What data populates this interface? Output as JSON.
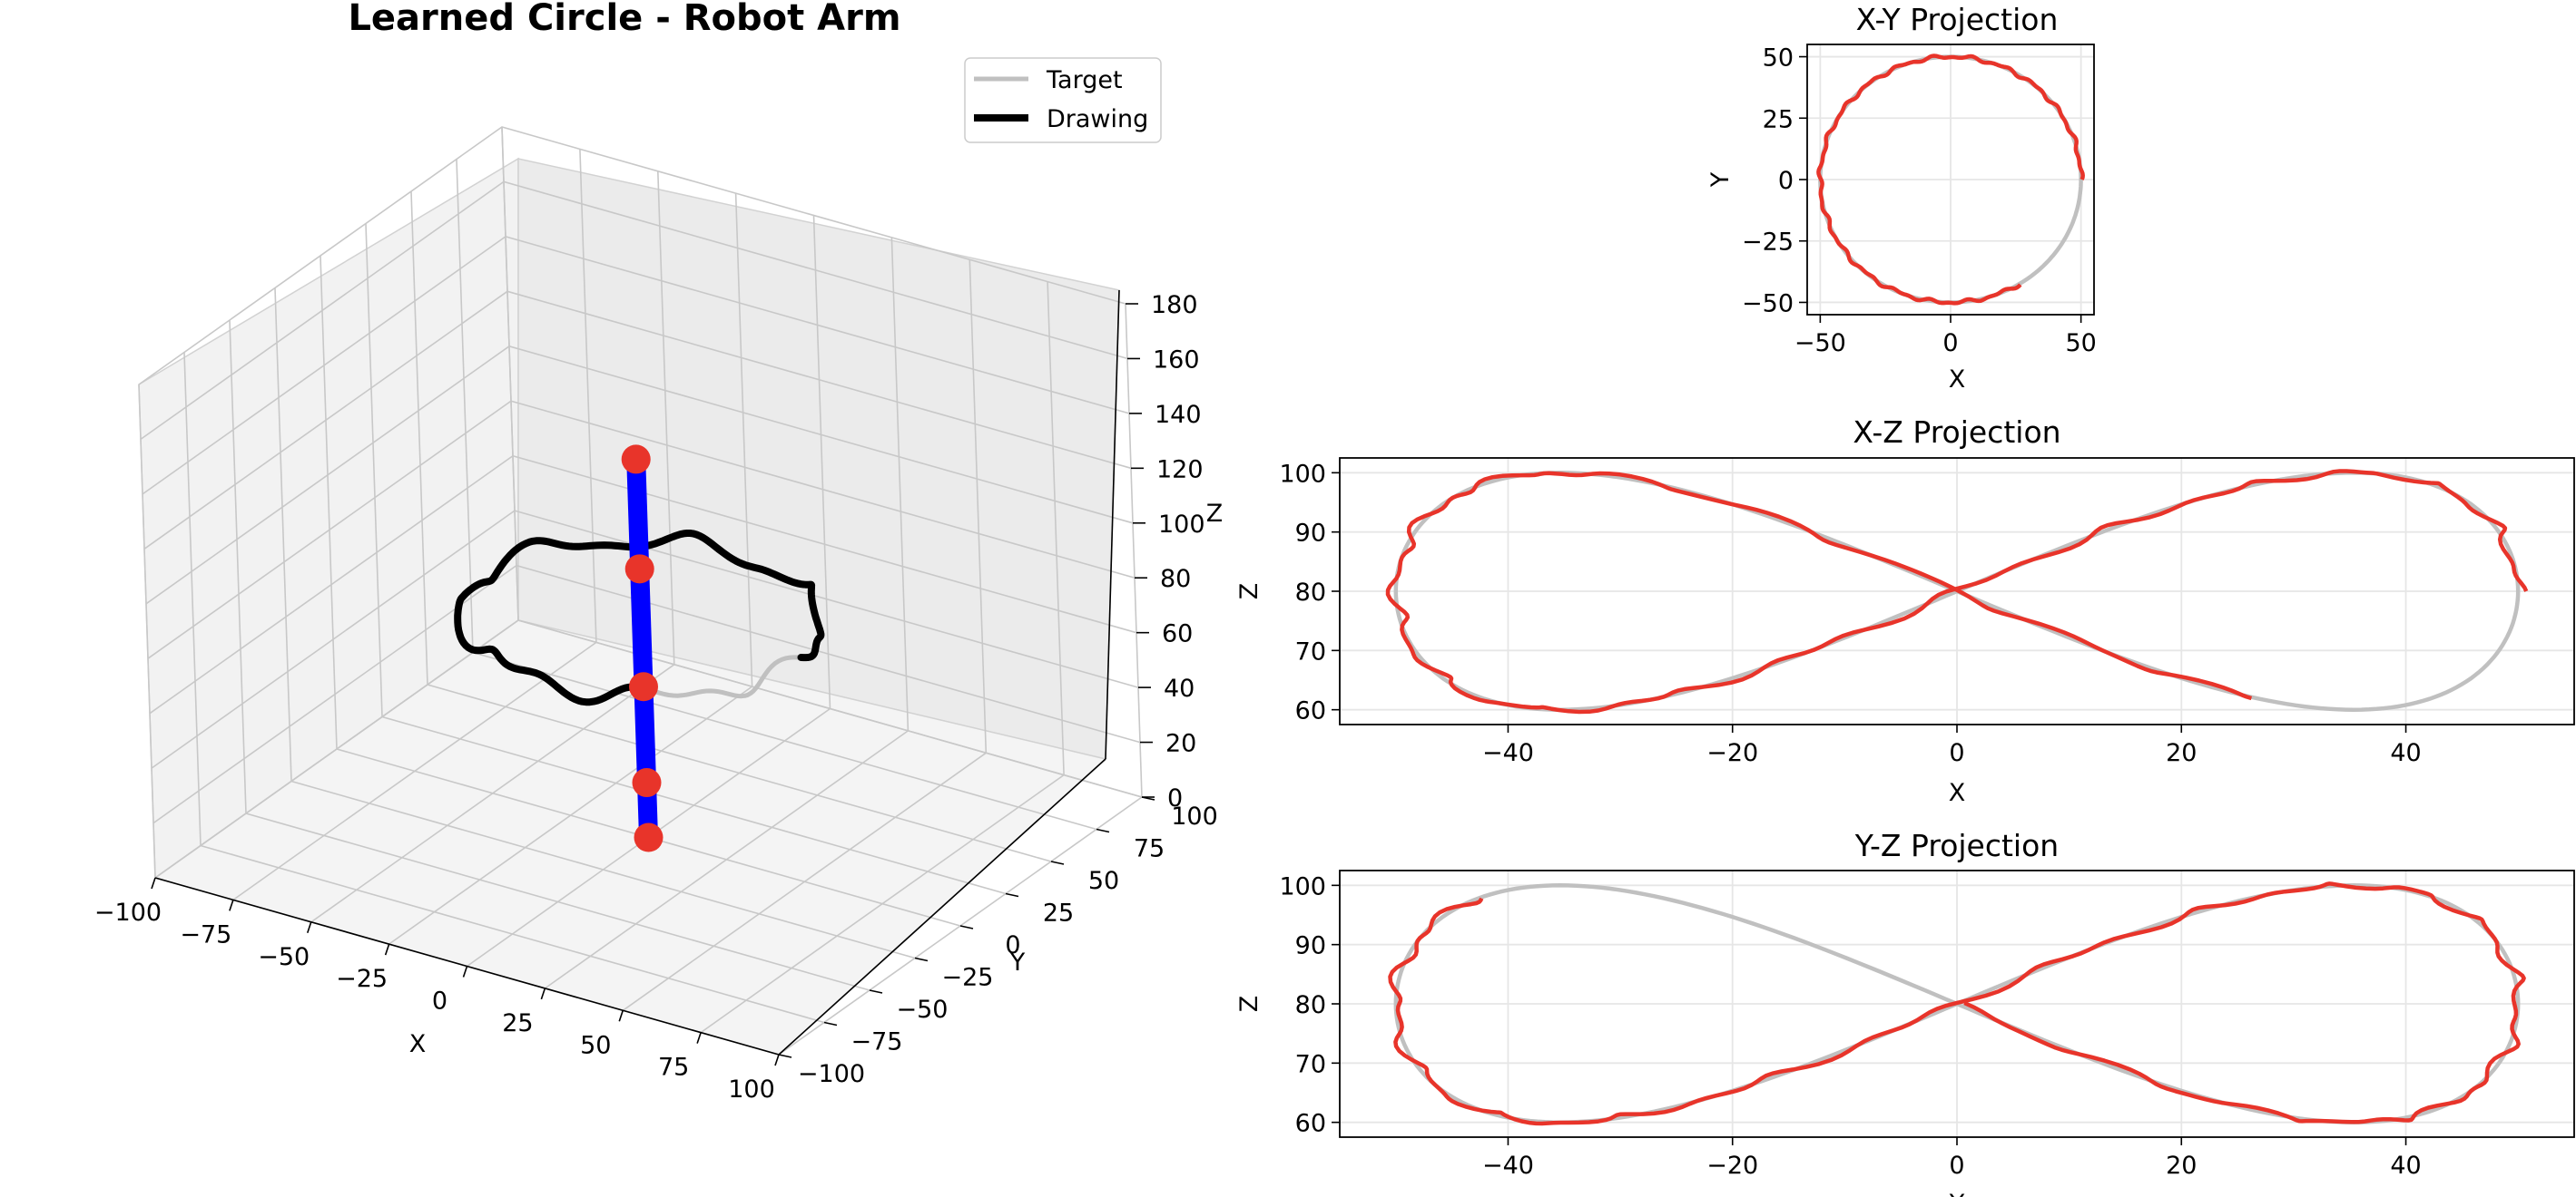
{
  "colors": {
    "target": "#c0c0c0",
    "drawing": "#e8342a",
    "drawing3d": "#000000",
    "arm": "#0000ff",
    "joint": "#e8342a",
    "pane_left": "#f2f2f2",
    "pane_right": "#ebebeb",
    "pane_floor": "#f4f4f4"
  },
  "chart_data": [
    {
      "type": "line3d",
      "title": "Learned Circle - Robot Arm",
      "xlabel": "X",
      "ylabel": "Y",
      "zlabel": "Z",
      "xlim": [
        -100,
        100
      ],
      "ylim": [
        -100,
        100
      ],
      "zlim": [
        0,
        180
      ],
      "xticks": [
        "−100",
        "−75",
        "−50",
        "−25",
        "0",
        "25",
        "50",
        "75",
        "100"
      ],
      "yticks": [
        "−100",
        "−75",
        "−50",
        "−25",
        "0",
        "25",
        "50",
        "75",
        "100"
      ],
      "zticks": [
        "0",
        "20",
        "40",
        "60",
        "80",
        "100",
        "120",
        "140",
        "160",
        "180"
      ],
      "legend": {
        "position": "top-right",
        "entries": [
          "Target",
          "Drawing"
        ]
      },
      "arm_joints": [
        [
          0,
          0,
          0
        ],
        [
          0,
          0,
          20
        ],
        [
          0,
          0,
          55
        ],
        [
          0,
          0,
          98
        ],
        [
          0,
          0,
          138
        ]
      ],
      "series": [
        {
          "name": "Target",
          "note": "circle radius 50 at Z = 80 (unfinished part visible in grey)"
        },
        {
          "name": "Drawing",
          "note": "drawn trajectory"
        }
      ]
    },
    {
      "type": "line",
      "title": "X-Y Projection",
      "xlabel": "X",
      "ylabel": "Y",
      "xlim": [
        -55,
        55
      ],
      "ylim": [
        -55,
        55
      ],
      "xticks": [
        -50,
        0,
        50
      ],
      "yticks": [
        -50,
        -25,
        0,
        25,
        50
      ],
      "xtick_labels": [
        "−50",
        "0",
        "50"
      ],
      "ytick_labels": [
        "−50",
        "−25",
        "0",
        "25",
        "50"
      ],
      "series": [
        {
          "name": "Target",
          "shape": "circle",
          "radius": 50,
          "center": [
            0,
            0
          ]
        },
        {
          "name": "Drawing",
          "shape": "circle",
          "radius": 50,
          "center": [
            0,
            0
          ],
          "covers_deg": [
            0,
            302
          ]
        }
      ]
    },
    {
      "type": "line",
      "title": "X-Z Projection",
      "xlabel": "X",
      "ylabel": "Z",
      "xlim": [
        -55,
        55
      ],
      "ylim": [
        57.5,
        102.5
      ],
      "xticks": [
        -40,
        -20,
        0,
        20,
        40
      ],
      "yticks": [
        60,
        70,
        80,
        90,
        100
      ],
      "xtick_labels": [
        "−40",
        "−20",
        "0",
        "20",
        "40"
      ],
      "ytick_labels": [
        "60",
        "70",
        "80",
        "90",
        "100"
      ],
      "series": [
        {
          "name": "Target",
          "shape": "figure-eight",
          "center_z": 80,
          "amp_x": 50,
          "amp_z": 20
        },
        {
          "name": "Drawing",
          "shape": "figure-eight",
          "center_z": 80,
          "amp_x": 50,
          "amp_z": 20,
          "covers_deg": [
            0,
            302
          ]
        }
      ]
    },
    {
      "type": "line",
      "title": "Y-Z Projection",
      "xlabel": "Y",
      "ylabel": "Z",
      "xlim": [
        -55,
        55
      ],
      "ylim": [
        57.5,
        102.5
      ],
      "xticks": [
        -40,
        -20,
        0,
        20,
        40
      ],
      "yticks": [
        60,
        70,
        80,
        90,
        100
      ],
      "xtick_labels": [
        "−40",
        "−20",
        "0",
        "20",
        "40"
      ],
      "ytick_labels": [
        "60",
        "70",
        "80",
        "90",
        "100"
      ],
      "series": [
        {
          "name": "Target",
          "shape": "figure-eight",
          "center_z": 80,
          "amp_y": 50,
          "amp_z": 20
        },
        {
          "name": "Drawing",
          "shape": "figure-eight",
          "center_z": 80,
          "amp_y": 50,
          "amp_z": 20,
          "covers_deg": [
            0,
            302
          ]
        }
      ]
    }
  ]
}
